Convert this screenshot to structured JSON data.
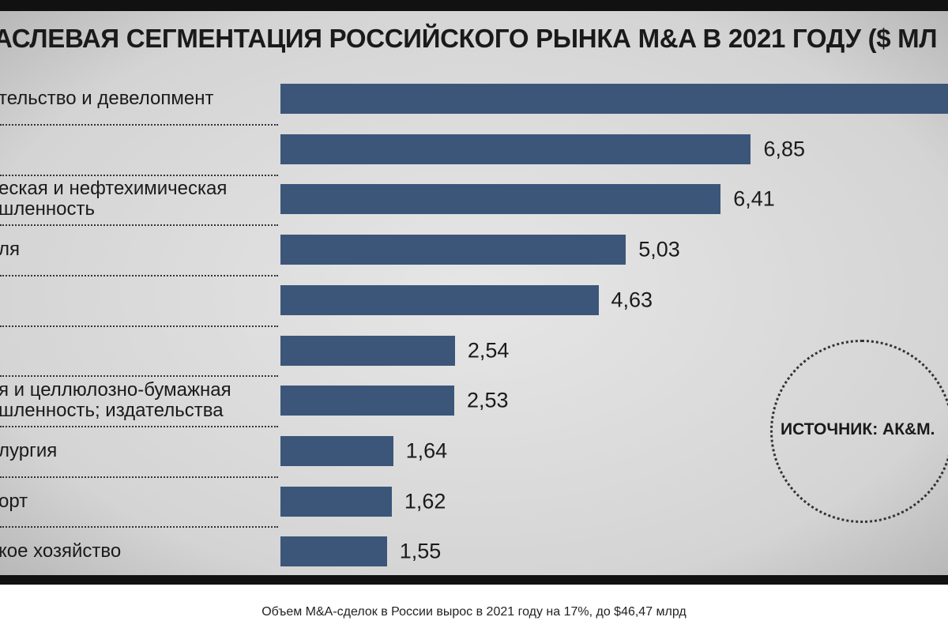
{
  "chart_data": {
    "type": "bar",
    "orientation": "horizontal",
    "title": "АСЛЕВАЯ СЕГМЕНТАЦИЯ РОССИЙСКОГО РЫНКА M&A В 2021 ГОДУ ($ МЛ",
    "categories": [
      "тельство и девелопмент",
      null,
      "еская и нефтехимическая\nшленность",
      "ля",
      null,
      null,
      "я и целлюлозно-бумажная\nшленность; издательства",
      "лургия",
      "орт",
      "кое хозяйство"
    ],
    "values": [
      9.72,
      6.85,
      6.41,
      5.03,
      4.63,
      2.54,
      2.53,
      1.64,
      1.62,
      1.55
    ],
    "value_labels": [
      null,
      "6,85",
      "6,41",
      "5,03",
      "4,63",
      "2,54",
      "2,53",
      "1,64",
      "1,62",
      "1,55"
    ],
    "color": "#3b5679",
    "xlim": [
      0,
      9.72
    ],
    "annotation": "ИСТОЧНИК: АК&M."
  },
  "caption": "Объем M&A-сделок в России вырос в 2021 году на 17%, до $46,47 млрд"
}
